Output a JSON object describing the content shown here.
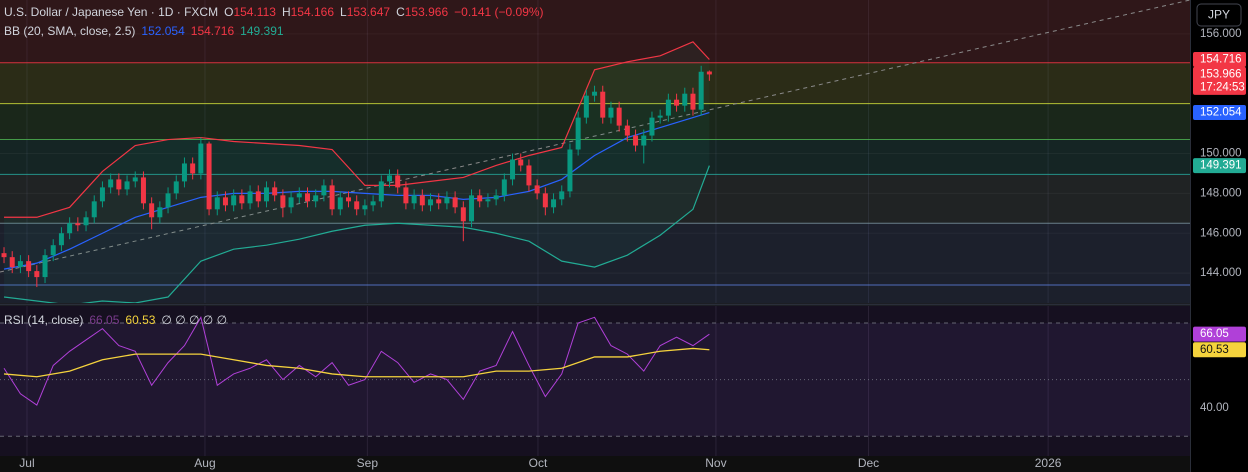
{
  "chart_data": [
    {
      "type": "candlestick",
      "title": "U.S. Dollar / Japanese Yen · 1D · FXCM",
      "ohlc_labels": [
        "O",
        "H",
        "L",
        "C"
      ],
      "change_label": "−0.141 (−0.09%)",
      "countdown": "17:24:53",
      "currency": "JPY",
      "up_color": "#089981",
      "down_color": "#f23645",
      "open": [
        145.0,
        144.8,
        144.3,
        144.6,
        144.1,
        143.8,
        144.9,
        145.4,
        146.0,
        146.5,
        146.4,
        146.8,
        147.6,
        148.3,
        148.7,
        148.2,
        148.6,
        148.8,
        147.5,
        146.8,
        147.3,
        148.0,
        148.6,
        149.5,
        149.0,
        150.5,
        147.2,
        147.8,
        147.4,
        147.9,
        147.5,
        148.1,
        147.6,
        148.3,
        147.9,
        147.3,
        147.8,
        148.0,
        147.6,
        147.9,
        148.4,
        147.2,
        147.8,
        147.6,
        147.2,
        147.4,
        147.6,
        148.6,
        148.9,
        148.3,
        147.5,
        147.9,
        147.4,
        147.7,
        147.5,
        147.8,
        147.3,
        146.6,
        147.9,
        147.6,
        147.7,
        147.9,
        148.7,
        149.7,
        149.4,
        148.4,
        148.0,
        147.3,
        147.7,
        148.1,
        150.2,
        151.8,
        152.9,
        153.1,
        151.8,
        152.3,
        151.4,
        150.9,
        150.4,
        150.9,
        151.8,
        151.9,
        152.7,
        152.4,
        153.0,
        152.2,
        154.113
      ],
      "high": [
        145.3,
        145.1,
        144.9,
        144.9,
        144.4,
        145.2,
        145.7,
        146.3,
        146.8,
        146.8,
        147.1,
        147.9,
        148.6,
        149.0,
        149.0,
        148.9,
        149.1,
        149.1,
        147.8,
        147.6,
        148.3,
        148.9,
        149.8,
        149.8,
        150.8,
        150.6,
        148.1,
        148.1,
        148.2,
        148.2,
        148.4,
        148.4,
        148.6,
        148.6,
        148.2,
        148.1,
        148.3,
        148.3,
        148.2,
        148.7,
        148.7,
        148.1,
        148.1,
        147.9,
        147.7,
        147.9,
        148.9,
        149.2,
        149.2,
        148.6,
        148.2,
        148.2,
        148.0,
        148.0,
        148.1,
        148.1,
        147.6,
        148.2,
        148.2,
        148.0,
        148.2,
        149.0,
        150.0,
        150.0,
        149.7,
        148.7,
        148.3,
        148.0,
        148.4,
        150.5,
        152.1,
        153.2,
        153.4,
        153.4,
        152.6,
        152.6,
        151.7,
        151.2,
        151.2,
        152.1,
        152.2,
        153.0,
        153.0,
        153.3,
        153.3,
        154.4,
        154.166
      ],
      "low": [
        144.5,
        144.0,
        144.0,
        143.8,
        143.3,
        143.5,
        144.6,
        145.1,
        145.7,
        146.1,
        146.1,
        146.5,
        147.3,
        148.0,
        147.9,
        147.9,
        148.3,
        147.2,
        146.2,
        146.5,
        147.0,
        147.7,
        148.3,
        148.7,
        148.7,
        146.9,
        146.9,
        147.1,
        147.1,
        147.2,
        147.2,
        147.3,
        147.3,
        147.6,
        146.8,
        147.0,
        147.5,
        147.3,
        147.3,
        147.6,
        146.9,
        146.9,
        147.3,
        146.9,
        146.9,
        147.1,
        147.3,
        148.3,
        148.0,
        147.2,
        147.2,
        147.1,
        147.1,
        147.2,
        147.2,
        147.0,
        145.6,
        146.3,
        147.3,
        147.3,
        147.4,
        147.6,
        148.4,
        149.1,
        148.1,
        147.7,
        146.9,
        147.0,
        147.4,
        147.8,
        149.9,
        151.5,
        152.6,
        151.5,
        151.5,
        151.1,
        150.6,
        150.1,
        149.5,
        150.6,
        151.5,
        151.6,
        152.1,
        152.1,
        151.9,
        151.9,
        153.647
      ],
      "close": [
        144.8,
        144.3,
        144.6,
        144.1,
        143.8,
        144.9,
        145.4,
        146.0,
        146.5,
        146.4,
        146.8,
        147.6,
        148.3,
        148.7,
        148.2,
        148.6,
        148.8,
        147.5,
        146.8,
        147.3,
        148.0,
        148.6,
        149.5,
        149.0,
        150.5,
        147.2,
        147.8,
        147.4,
        147.9,
        147.5,
        148.1,
        147.6,
        148.3,
        147.9,
        147.3,
        147.8,
        148.0,
        147.6,
        147.9,
        148.4,
        147.2,
        147.8,
        147.6,
        147.2,
        147.4,
        147.6,
        148.6,
        148.9,
        148.3,
        147.5,
        147.9,
        147.4,
        147.7,
        147.5,
        147.8,
        147.3,
        146.6,
        147.9,
        147.6,
        147.7,
        147.9,
        148.7,
        149.7,
        149.4,
        148.4,
        148.0,
        147.3,
        147.7,
        148.1,
        150.2,
        151.8,
        152.9,
        153.1,
        151.8,
        152.3,
        151.4,
        150.9,
        150.4,
        150.9,
        151.8,
        151.9,
        152.7,
        152.4,
        153.0,
        152.2,
        154.1,
        153.966
      ],
      "indicator": {
        "name": "BB (20, SMA, close, 2.5)",
        "series": [
          {
            "color": "#2962ff",
            "x": [
              0,
              4,
              8,
              12,
              16,
              20,
              24,
              28,
              32,
              36,
              40,
              44,
              48,
              52,
              56,
              60,
              64,
              68,
              72,
              76,
              80,
              84,
              86
            ],
            "values": [
              144.2,
              144.5,
              145.2,
              146.0,
              146.8,
              147.3,
              147.8,
              148.0,
              148.0,
              148.1,
              148.1,
              148.0,
              147.9,
              147.9,
              147.7,
              147.8,
              148.1,
              148.7,
              149.9,
              150.8,
              151.3,
              151.8,
              152.054
            ]
          },
          {
            "color": "#f23645",
            "x": [
              0,
              4,
              8,
              12,
              16,
              20,
              24,
              28,
              32,
              36,
              40,
              44,
              48,
              52,
              56,
              60,
              64,
              68,
              72,
              76,
              80,
              84,
              86
            ],
            "values": [
              146.8,
              146.8,
              147.3,
              149.1,
              150.4,
              150.7,
              150.8,
              150.6,
              150.5,
              150.4,
              150.2,
              148.4,
              148.4,
              148.6,
              148.8,
              149.4,
              149.9,
              150.3,
              154.2,
              154.6,
              154.9,
              155.6,
              154.716
            ]
          },
          {
            "color": "#22ab94",
            "x": [
              0,
              4,
              8,
              12,
              16,
              20,
              24,
              28,
              32,
              36,
              40,
              44,
              48,
              52,
              56,
              60,
              64,
              68,
              72,
              76,
              80,
              84,
              86
            ],
            "values": [
              142.8,
              142.6,
              142.4,
              142.6,
              142.5,
              142.8,
              144.6,
              145.2,
              145.4,
              145.7,
              146.1,
              146.4,
              146.5,
              146.4,
              146.3,
              146.0,
              145.6,
              144.6,
              144.3,
              144.9,
              145.9,
              147.2,
              149.391
            ]
          }
        ]
      },
      "levels": [
        {
          "value": 154.55,
          "color": "#f23645"
        },
        {
          "value": 152.5,
          "color": "#cddc39"
        },
        {
          "value": 150.7,
          "color": "#4caf50"
        },
        {
          "value": 148.95,
          "color": "#26a69a"
        },
        {
          "value": 146.5,
          "color": "#78909c"
        },
        {
          "value": 143.4,
          "color": "#5b7bd5"
        }
      ],
      "xlim": [
        -0.49,
        144.6
      ],
      "xticks": [
        {
          "value": 2.8,
          "label": "Jul"
        },
        {
          "value": 24.5,
          "label": "Aug"
        },
        {
          "value": 44.3,
          "label": "Sep"
        },
        {
          "value": 65.1,
          "label": "Oct"
        },
        {
          "value": 86.8,
          "label": "Nov"
        },
        {
          "value": 105.4,
          "label": "Dec"
        },
        {
          "value": 127.3,
          "label": "2026"
        }
      ],
      "ylim": [
        142.5,
        157.7
      ],
      "yticks": [
        {
          "value": 156,
          "label": "156.000"
        },
        {
          "value": 150,
          "label": "150.000"
        },
        {
          "value": 148,
          "label": "148.000"
        },
        {
          "value": 146,
          "label": "146.000"
        },
        {
          "value": 144,
          "label": "144.000"
        }
      ],
      "grid": true
    },
    {
      "type": "line",
      "title": "RSI (14, close)",
      "na_labels": "∅ ∅ ∅ ∅ ∅",
      "series": [
        {
          "color": "#b040d8",
          "x": [
            0,
            2,
            4,
            6,
            8,
            10,
            12,
            14,
            16,
            18,
            20,
            22,
            24,
            26,
            28,
            30,
            32,
            34,
            36,
            38,
            40,
            42,
            44,
            46,
            48,
            50,
            52,
            54,
            56,
            58,
            60,
            62,
            64,
            66,
            68,
            70,
            72,
            74,
            76,
            78,
            80,
            82,
            84,
            86
          ],
          "values": [
            54,
            45,
            41,
            55,
            60,
            64,
            68,
            62,
            60,
            48,
            56,
            62,
            72,
            48,
            52,
            54,
            57,
            50,
            55,
            51,
            56,
            48,
            50,
            60,
            56,
            49,
            52,
            50,
            43,
            53,
            55,
            67,
            55,
            44,
            52,
            70,
            72,
            62,
            59,
            53,
            62,
            65,
            62,
            66.05
          ]
        },
        {
          "color": "#f5d33d",
          "x": [
            0,
            4,
            8,
            12,
            16,
            20,
            24,
            28,
            32,
            36,
            40,
            44,
            48,
            52,
            56,
            60,
            64,
            68,
            72,
            76,
            80,
            84,
            86
          ],
          "values": [
            52,
            51,
            53,
            57,
            59,
            59,
            59,
            57,
            55,
            54,
            52,
            51,
            51,
            51,
            51,
            53,
            53,
            54,
            58,
            58,
            60,
            61,
            60.53
          ]
        }
      ],
      "levels": [
        70,
        50,
        30
      ],
      "ylim": [
        23,
        76
      ],
      "yticks": [
        {
          "value": 40,
          "label": "40.00"
        }
      ]
    }
  ]
}
